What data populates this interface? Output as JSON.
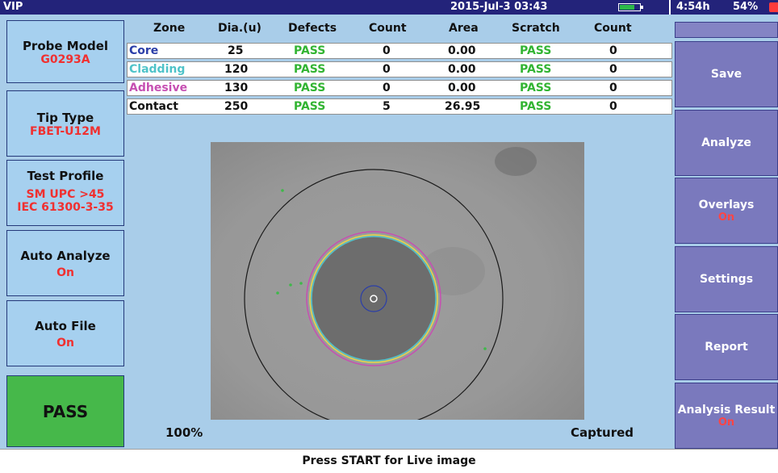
{
  "title_bar": {
    "app_name": "VIP",
    "datetime": "2015-Jul-3 03:43",
    "battery_runtime": "4:54h",
    "battery_percent": "54%"
  },
  "left_panel": {
    "probe_model": {
      "label": "Probe Model",
      "value": "G0293A"
    },
    "tip_type": {
      "label": "Tip Type",
      "value": "FBET-U12M"
    },
    "test_profile": {
      "label": "Test Profile",
      "value_line1": "SM UPC >45",
      "value_line2": "IEC 61300-3-35"
    },
    "auto_analyze": {
      "label": "Auto Analyze",
      "value": "On"
    },
    "auto_file": {
      "label": "Auto File",
      "value": "On"
    },
    "result": "PASS"
  },
  "results_table": {
    "headers": [
      "Zone",
      "Dia.(u)",
      "Defects",
      "Count",
      "Area",
      "Scratch",
      "Count"
    ],
    "rows": [
      {
        "zone": "Core",
        "dia": "25",
        "defects": "PASS",
        "count": "0",
        "area": "0.00",
        "scratch": "PASS",
        "scratch_count": "0",
        "zone_color": "#2b3ea8"
      },
      {
        "zone": "Cladding",
        "dia": "120",
        "defects": "PASS",
        "count": "0",
        "area": "0.00",
        "scratch": "PASS",
        "scratch_count": "0",
        "zone_color": "#4fc3c9"
      },
      {
        "zone": "Adhesive",
        "dia": "130",
        "defects": "PASS",
        "count": "0",
        "area": "0.00",
        "scratch": "PASS",
        "scratch_count": "0",
        "zone_color": "#c64fb2"
      },
      {
        "zone": "Contact",
        "dia": "250",
        "defects": "PASS",
        "count": "5",
        "area": "26.95",
        "scratch": "PASS",
        "scratch_count": "0",
        "zone_color": "#111111"
      }
    ]
  },
  "image_view": {
    "zoom": "100%",
    "state": "Captured"
  },
  "right_panel": {
    "save": "Save",
    "analyze": "Analyze",
    "overlays": {
      "label": "Overlays",
      "value": "On"
    },
    "settings": "Settings",
    "report": "Report",
    "analysis_result": {
      "label": "Analysis Result",
      "value": "On"
    }
  },
  "status_bar": {
    "message": "Press START for Live image"
  },
  "colors": {
    "panel_bg": "#a9cde9",
    "button_bg": "#7a79bd",
    "pass_green": "#46b84a",
    "value_red": "#f03030",
    "title_bar": "#23237a"
  }
}
